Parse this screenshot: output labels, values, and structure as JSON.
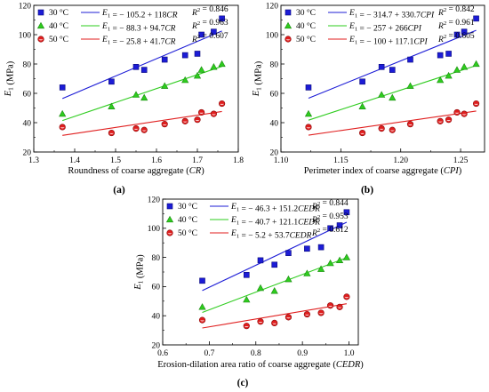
{
  "figure": {
    "panels": [
      {
        "label": "(a)"
      },
      {
        "label": "(b)"
      },
      {
        "label": "(c)"
      }
    ]
  },
  "chart_data": [
    {
      "type": "scatter",
      "panel_label": "(a)",
      "xlabel": "Roundness of coarse aggregate (CR)",
      "ylabel": "E1 (MPa)",
      "xlim": [
        1.3,
        1.8
      ],
      "ylim": [
        20,
        120
      ],
      "xticks": [
        "1.3",
        "1.4",
        "1.5",
        "1.6",
        "1.7",
        "1.8"
      ],
      "yticks": [
        "20",
        "40",
        "60",
        "80",
        "100",
        "120"
      ],
      "grid": false,
      "legend_position": "top-left",
      "series": [
        {
          "name": "30 °C",
          "marker": "square",
          "color": "#1c1cd6",
          "equation": "E1 = − 105.2 + 118CR",
          "r2": "R2 = 0.846",
          "fit": [
            -105.2,
            118
          ],
          "x": [
            1.37,
            1.49,
            1.55,
            1.57,
            1.62,
            1.67,
            1.7,
            1.71,
            1.74,
            1.76
          ],
          "y": [
            64,
            68,
            78,
            76,
            83,
            86,
            87,
            100,
            102,
            111
          ]
        },
        {
          "name": "40 °C",
          "marker": "triangle",
          "color": "#2ecc1e",
          "equation": "E1 = − 88.3 + 94.7CR",
          "r2": "R2 = 0.963",
          "fit": [
            -88.3,
            94.7
          ],
          "x": [
            1.37,
            1.49,
            1.55,
            1.57,
            1.62,
            1.67,
            1.7,
            1.71,
            1.74,
            1.76
          ],
          "y": [
            46,
            51,
            59,
            57,
            65,
            69,
            72,
            76,
            78,
            80
          ]
        },
        {
          "name": "50 °C",
          "marker": "circle",
          "color": "#e01e1e",
          "equation": "E1 = − 25.8 + 41.7CR",
          "r2": "R2 = 0.607",
          "fit": [
            -25.8,
            41.7
          ],
          "x": [
            1.37,
            1.49,
            1.55,
            1.57,
            1.62,
            1.67,
            1.7,
            1.71,
            1.74,
            1.76
          ],
          "y": [
            37,
            33,
            36,
            35,
            39,
            41,
            42,
            47,
            46,
            53
          ]
        }
      ]
    },
    {
      "type": "scatter",
      "panel_label": "(b)",
      "xlabel": "Perimeter index of coarse aggregate (CPI)",
      "ylabel": "E1 (MPa)",
      "xlim": [
        1.1,
        1.27
      ],
      "ylim": [
        20,
        120
      ],
      "xticks": [
        "1.10",
        "1.15",
        "1.20",
        "1.25"
      ],
      "yticks": [
        "20",
        "40",
        "60",
        "80",
        "100",
        "120"
      ],
      "grid": false,
      "legend_position": "top-left",
      "series": [
        {
          "name": "30 °C",
          "marker": "square",
          "color": "#1c1cd6",
          "equation": "E1 = − 314.7 + 330.7CPI",
          "r2": "R2 = 0.842",
          "fit": [
            -314.7,
            330.7
          ],
          "x": [
            1.123,
            1.168,
            1.184,
            1.193,
            1.208,
            1.233,
            1.24,
            1.247,
            1.253,
            1.263
          ],
          "y": [
            64,
            68,
            78,
            76,
            83,
            86,
            87,
            100,
            102,
            111
          ]
        },
        {
          "name": "40 °C",
          "marker": "triangle",
          "color": "#2ecc1e",
          "equation": "E1 = − 257 + 266CPI",
          "r2": "R2 = 0.961",
          "fit": [
            -257,
            266
          ],
          "x": [
            1.123,
            1.168,
            1.184,
            1.193,
            1.208,
            1.233,
            1.24,
            1.247,
            1.253,
            1.263
          ],
          "y": [
            46,
            51,
            59,
            57,
            65,
            69,
            72,
            76,
            78,
            80
          ]
        },
        {
          "name": "50 °C",
          "marker": "circle",
          "color": "#e01e1e",
          "equation": "E1 = − 100 + 117.1CPI",
          "r2": "R2 = 0.605",
          "fit": [
            -100,
            117.1
          ],
          "x": [
            1.123,
            1.168,
            1.184,
            1.193,
            1.208,
            1.233,
            1.24,
            1.247,
            1.253,
            1.263
          ],
          "y": [
            37,
            33,
            36,
            35,
            39,
            41,
            42,
            47,
            46,
            53
          ]
        }
      ]
    },
    {
      "type": "scatter",
      "panel_label": "(c)",
      "xlabel": "Erosion-dilation area ratio of coarse aggregate (CEDR)",
      "ylabel": "E1 (MPa)",
      "xlim": [
        0.6,
        1.02
      ],
      "ylim": [
        20,
        120
      ],
      "xticks": [
        "0.6",
        "0.7",
        "0.8",
        "0.9",
        "1.0"
      ],
      "yticks": [
        "20",
        "40",
        "60",
        "80",
        "100",
        "120"
      ],
      "grid": false,
      "legend_position": "top-left",
      "series": [
        {
          "name": "30 °C",
          "marker": "square",
          "color": "#1c1cd6",
          "equation": "E1 = − 46.3 + 151.2CEDR",
          "r2": "R2 = 0.844",
          "fit": [
            -46.3,
            151.2
          ],
          "x": [
            0.685,
            0.78,
            0.81,
            0.84,
            0.87,
            0.91,
            0.94,
            0.96,
            0.98,
            0.995
          ],
          "y": [
            64,
            68,
            78,
            75,
            83,
            86,
            87,
            100,
            102,
            111
          ]
        },
        {
          "name": "40 °C",
          "marker": "triangle",
          "color": "#2ecc1e",
          "equation": "E1 = − 40.7 + 121.1CEDR",
          "r2": "R2 = 0.953",
          "fit": [
            -40.7,
            121.1
          ],
          "x": [
            0.685,
            0.78,
            0.81,
            0.84,
            0.87,
            0.91,
            0.94,
            0.96,
            0.98,
            0.995
          ],
          "y": [
            46,
            51,
            59,
            57,
            65,
            69,
            72,
            76,
            78,
            80
          ]
        },
        {
          "name": "50 °C",
          "marker": "circle",
          "color": "#e01e1e",
          "equation": "E1 = − 5.2 + 53.7CEDR",
          "r2": "R2 = 0.612",
          "fit": [
            -5.2,
            53.7
          ],
          "x": [
            0.685,
            0.78,
            0.81,
            0.84,
            0.87,
            0.91,
            0.94,
            0.96,
            0.98,
            0.995
          ],
          "y": [
            37,
            33,
            36,
            35,
            39,
            41,
            42,
            47,
            46,
            53
          ]
        }
      ]
    }
  ]
}
